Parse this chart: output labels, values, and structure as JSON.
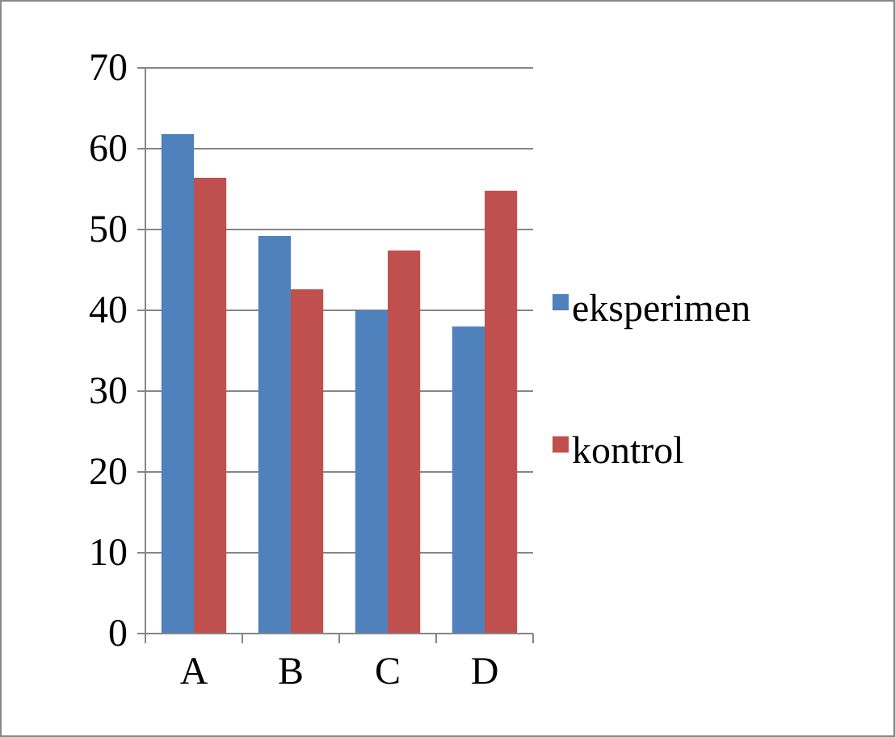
{
  "chart_data": {
    "type": "bar",
    "categories": [
      "A",
      "B",
      "C",
      "D"
    ],
    "series": [
      {
        "name": "eksperimen",
        "color": "#4f81bd",
        "values": [
          61.8,
          49.2,
          40,
          38
        ]
      },
      {
        "name": "kontrol",
        "color": "#c0504d",
        "values": [
          56.4,
          42.6,
          47.4,
          54.8
        ]
      }
    ],
    "ylim": [
      0,
      70
    ],
    "yticks": [
      0,
      10,
      20,
      30,
      40,
      50,
      60,
      70
    ],
    "grid": "y",
    "legend": "right"
  }
}
